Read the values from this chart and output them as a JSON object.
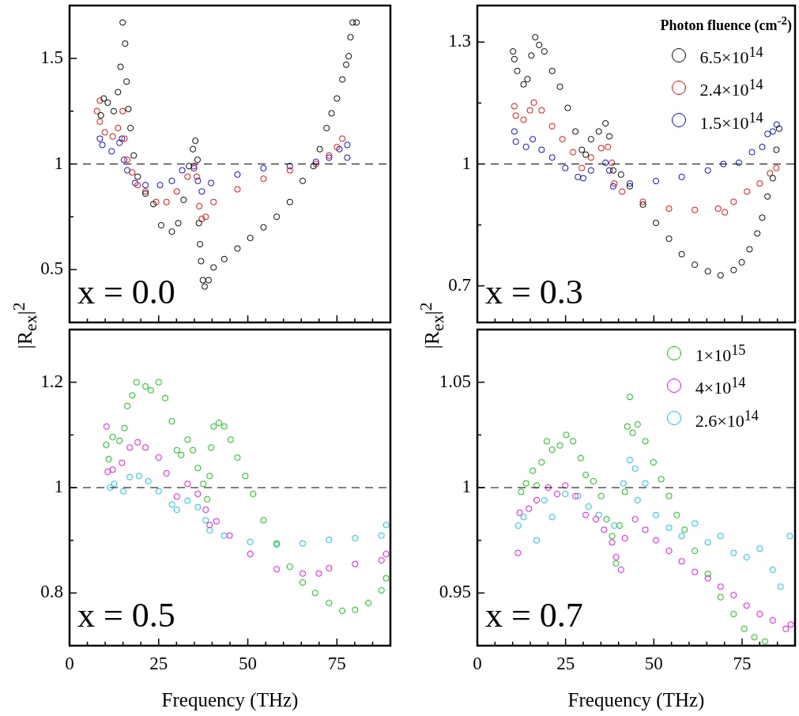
{
  "chart_data": [
    {
      "type": "scatter",
      "ylabel": "|R$_{ex}$|$^{2}$",
      "marker": "circle",
      "legend": false,
      "tick_labels": "y",
      "annotations": [
        "x = 0.0"
      ],
      "xlim": [
        0,
        90
      ],
      "xticks": [
        0,
        {
          "value": 5,
          "label": null
        },
        {
          "value": 10,
          "label": null
        },
        {
          "value": 15,
          "label": null
        },
        {
          "value": 20,
          "label": null
        },
        25,
        {
          "value": 30,
          "label": null
        },
        {
          "value": 35,
          "label": null
        },
        {
          "value": 40,
          "label": null
        },
        {
          "value": 45,
          "label": null
        },
        50,
        {
          "value": 55,
          "label": null
        },
        {
          "value": 60,
          "label": null
        },
        {
          "value": 65,
          "label": null
        },
        {
          "value": 70,
          "label": null
        },
        75,
        {
          "value": 80,
          "label": null
        },
        {
          "value": 85,
          "label": null
        },
        {
          "value": 90,
          "label": null
        }
      ],
      "ylim": [
        0.25,
        1.75
      ],
      "yticks": [
        0.5,
        {
          "value": 0.75,
          "label": null
        },
        1,
        {
          "value": 1.25,
          "label": null
        },
        1.5
      ],
      "ref_lines": [
        {
          "axis": "y",
          "value": 1,
          "line_style": "dashed",
          "color": "#000000"
        }
      ],
      "series": [
        {
          "color": "#000000",
          "x": [
            8.8,
            9.6,
            10.7,
            12.4,
            13.6,
            14.3,
            14.9,
            15.6,
            16.0,
            16.5,
            17.1,
            18.0,
            19.1,
            21.3,
            23.5,
            25.7,
            28.7,
            30.5,
            32.0,
            33.5,
            34.6,
            35.3,
            35.9,
            36.3,
            36.6,
            36.9,
            37.4,
            37.9,
            39.0,
            40.4,
            43.4,
            47.1,
            50.7,
            54.4,
            58.1,
            61.8,
            65.4,
            68.4,
            70.2,
            72.1,
            73.5,
            75.0,
            76.5,
            77.6,
            78.3,
            78.8,
            79.4,
            80.5
          ],
          "values": [
            1.23,
            1.31,
            1.29,
            1.25,
            1.34,
            1.46,
            1.67,
            1.57,
            1.39,
            1.26,
            1.17,
            1.04,
            0.94,
            0.86,
            0.81,
            0.71,
            0.68,
            0.72,
            0.83,
            0.99,
            1.07,
            1.11,
            1.02,
            0.72,
            0.62,
            0.54,
            0.45,
            0.42,
            0.45,
            0.51,
            0.55,
            0.6,
            0.65,
            0.7,
            0.75,
            0.82,
            0.92,
            0.99,
            1.07,
            1.17,
            1.24,
            1.31,
            1.4,
            1.47,
            1.51,
            1.6,
            1.67,
            1.67
          ]
        },
        {
          "color": "#ff0000",
          "x": [
            7.7,
            8.5,
            8.5,
            9.9,
            12.1,
            13.6,
            14.9,
            15.4,
            16.2,
            17.6,
            19.1,
            21.3,
            24.3,
            27.2,
            30.1,
            33.1,
            34.9,
            35.7,
            36.4,
            37.1,
            38.2,
            40.4,
            47.1,
            54.4,
            61.8,
            69.1,
            72.8,
            75.0,
            76.5
          ],
          "values": [
            1.25,
            1.3,
            1.2,
            1.15,
            1.13,
            1.17,
            1.25,
            1.12,
            1.02,
            0.96,
            0.9,
            0.87,
            0.82,
            0.82,
            0.87,
            0.94,
            0.99,
            0.94,
            0.8,
            0.74,
            0.75,
            0.82,
            0.88,
            0.93,
            0.97,
            1.0,
            1.04,
            1.08,
            1.12
          ]
        },
        {
          "color": "#0000ff",
          "x": [
            8.5,
            9.2,
            11.8,
            14.0,
            14.7,
            15.3,
            16.2,
            18.4,
            21.3,
            25.4,
            28.7,
            31.6,
            34.9,
            36.0,
            37.1,
            39.7,
            47.1,
            54.4,
            61.8,
            69.1,
            72.8,
            75.7,
            77.9,
            77.9
          ],
          "values": [
            1.12,
            1.09,
            1.06,
            1.1,
            1.12,
            1.02,
            0.97,
            0.91,
            0.9,
            0.9,
            0.92,
            0.97,
            0.98,
            0.92,
            0.87,
            0.91,
            0.95,
            0.98,
            0.99,
            1.01,
            1.03,
            1.07,
            1.09,
            1.03
          ]
        }
      ]
    },
    {
      "type": "scatter",
      "ylabel": "|R$_{ex}$|$^{2}$",
      "marker": "circle",
      "legend": "top right",
      "legend_title": "Photon fluence (cm$^{-2}$)",
      "tick_labels": "y",
      "annotations": [
        "x = 0.3"
      ],
      "xlim": [
        0,
        90
      ],
      "xticks": [
        0,
        {
          "value": 5,
          "label": null
        },
        {
          "value": 10,
          "label": null
        },
        {
          "value": 15,
          "label": null
        },
        {
          "value": 20,
          "label": null
        },
        25,
        {
          "value": 30,
          "label": null
        },
        {
          "value": 35,
          "label": null
        },
        {
          "value": 40,
          "label": null
        },
        {
          "value": 45,
          "label": null
        },
        50,
        {
          "value": 55,
          "label": null
        },
        {
          "value": 60,
          "label": null
        },
        {
          "value": 65,
          "label": null
        },
        {
          "value": 70,
          "label": null
        },
        75,
        {
          "value": 80,
          "label": null
        },
        {
          "value": 85,
          "label": null
        },
        {
          "value": 90,
          "label": null
        }
      ],
      "ylim": [
        0.61,
        1.39
      ],
      "yticks": [
        0.7,
        {
          "value": 0.85,
          "label": null
        },
        1,
        {
          "value": 1.15,
          "label": null
        },
        1.3
      ],
      "ref_lines": [
        {
          "axis": "y",
          "value": 1,
          "line_style": "dashed",
          "color": "#000000"
        }
      ],
      "series": [
        {
          "name": "6.5×10$^{14}$",
          "color": "#000000",
          "x": [
            10.1,
            10.5,
            11.3,
            13.1,
            14.2,
            15.3,
            16.4,
            17.5,
            19.0,
            21.2,
            23.4,
            25.6,
            27.8,
            29.6,
            30.7,
            32.2,
            34.4,
            36.3,
            37.4,
            38.5,
            40.7,
            43.2,
            46.9,
            50.6,
            54.3,
            57.9,
            61.6,
            65.3,
            68.9,
            72.6,
            74.9,
            77.1,
            79.3,
            80.7,
            82.2,
            83.7,
            84.7,
            85.5
          ],
          "values": [
            1.277,
            1.258,
            1.229,
            1.196,
            1.209,
            1.267,
            1.312,
            1.293,
            1.277,
            1.229,
            1.19,
            1.138,
            1.08,
            1.035,
            1.023,
            1.061,
            1.08,
            1.1,
            1.068,
            0.984,
            0.974,
            0.945,
            0.9,
            0.855,
            0.816,
            0.778,
            0.752,
            0.736,
            0.726,
            0.739,
            0.758,
            0.79,
            0.829,
            0.868,
            0.92,
            0.965,
            1.035,
            1.087
          ]
        },
        {
          "name": "2.4×10$^{14}$",
          "color": "#ff0000",
          "x": [
            10.5,
            10.9,
            13.1,
            14.9,
            16.0,
            18.2,
            21.2,
            24.1,
            27.1,
            29.6,
            32.2,
            35.1,
            37.0,
            38.1,
            38.8,
            41.0,
            46.9,
            54.3,
            61.6,
            68.2,
            70.1,
            72.6,
            76.4,
            80.0,
            82.9,
            84.7
          ],
          "values": [
            1.142,
            1.119,
            1.109,
            1.132,
            1.151,
            1.132,
            1.093,
            1.061,
            1.029,
            0.99,
            1.016,
            1.039,
            1.042,
            1.003,
            0.952,
            0.932,
            0.907,
            0.89,
            0.887,
            0.89,
            0.881,
            0.907,
            0.932,
            0.952,
            0.977,
            0.99
          ]
        },
        {
          "name": "1.5×10$^{14}$",
          "color": "#0000ff",
          "x": [
            10.5,
            10.9,
            13.8,
            15.7,
            18.2,
            21.2,
            24.9,
            28.5,
            30.0,
            32.2,
            36.3,
            37.4,
            38.5,
            43.2,
            50.6,
            57.9,
            65.3,
            69.7,
            74.1,
            77.8,
            80.7,
            82.2,
            83.7,
            84.8
          ],
          "values": [
            1.08,
            1.055,
            1.042,
            1.061,
            1.035,
            1.016,
            0.99,
            0.968,
            0.965,
            0.984,
            1.003,
            0.984,
            0.945,
            0.952,
            0.958,
            0.968,
            0.984,
            1.0,
            1.003,
            1.029,
            1.042,
            1.074,
            1.08,
            1.097
          ]
        }
      ]
    },
    {
      "type": "scatter",
      "xlabel": "Frequency (THz)",
      "marker": "circle",
      "legend": false,
      "annotations": [
        "x = 0.5"
      ],
      "xlim": [
        0,
        90
      ],
      "xticks": [
        0,
        {
          "value": 5,
          "label": null
        },
        {
          "value": 10,
          "label": null
        },
        {
          "value": 15,
          "label": null
        },
        {
          "value": 20,
          "label": null
        },
        25,
        {
          "value": 30,
          "label": null
        },
        {
          "value": 35,
          "label": null
        },
        {
          "value": 40,
          "label": null
        },
        {
          "value": 45,
          "label": null
        },
        50,
        {
          "value": 55,
          "label": null
        },
        {
          "value": 60,
          "label": null
        },
        {
          "value": 65,
          "label": null
        },
        {
          "value": 70,
          "label": null
        },
        75,
        {
          "value": 80,
          "label": null
        },
        {
          "value": 85,
          "label": null
        },
        {
          "value": 90,
          "label": null
        }
      ],
      "ylim": [
        0.7,
        1.3
      ],
      "yticks": [
        0.8,
        {
          "value": 0.9,
          "label": null
        },
        1,
        {
          "value": 1.1,
          "label": null
        },
        1.2
      ],
      "ref_lines": [
        {
          "axis": "y",
          "value": 1,
          "line_style": "dashed",
          "color": "#000000"
        }
      ],
      "series": [
        {
          "color": "#00cc00",
          "x": [
            10.3,
            11.0,
            12.1,
            14.0,
            15.4,
            16.2,
            17.6,
            18.8,
            21.3,
            22.8,
            25.0,
            26.8,
            28.7,
            30.1,
            31.3,
            33.1,
            34.6,
            36.0,
            37.5,
            38.6,
            39.3,
            39.7,
            40.4,
            41.9,
            43.4,
            45.2,
            47.1,
            49.3,
            51.5,
            54.4,
            58.1,
            61.8,
            65.4,
            68.9,
            72.8,
            76.5,
            80.1,
            83.8,
            87.5,
            88.8
          ],
          "values": [
            1.081,
            1.054,
            1.096,
            1.089,
            1.113,
            1.155,
            1.175,
            1.2,
            1.192,
            1.185,
            1.2,
            1.17,
            1.126,
            1.071,
            1.062,
            1.091,
            1.071,
            1.037,
            1.007,
            0.978,
            1.022,
            1.076,
            1.116,
            1.123,
            1.116,
            1.091,
            1.057,
            1.022,
            0.988,
            0.938,
            0.894,
            0.85,
            0.82,
            0.8,
            0.781,
            0.766,
            0.768,
            0.781,
            0.805,
            0.828
          ]
        },
        {
          "color": "#ff00ff",
          "x": [
            10.4,
            10.7,
            12.1,
            14.7,
            16.9,
            19.1,
            21.3,
            25.0,
            27.2,
            30.1,
            33.1,
            36.0,
            38.2,
            39.3,
            41.2,
            44.9,
            50.7,
            58.1,
            65.4,
            69.9,
            72.8,
            80.1,
            87.5,
            88.8
          ],
          "values": [
            1.116,
            1.03,
            1.034,
            1.047,
            1.076,
            1.086,
            1.076,
            1.057,
            1.027,
            0.983,
            1.007,
            0.988,
            0.958,
            0.929,
            0.936,
            0.909,
            0.874,
            0.845,
            0.837,
            0.837,
            0.847,
            0.855,
            0.862,
            0.874
          ]
        },
        {
          "color": "#00ccf0",
          "x": [
            11.4,
            12.5,
            15.1,
            16.9,
            19.5,
            22.1,
            25.0,
            28.7,
            30.1,
            33.1,
            36.0,
            38.2,
            39.3,
            43.4,
            50.7,
            58.1,
            65.4,
            72.8,
            80.1,
            87.5,
            88.8
          ],
          "values": [
            1.0,
            1.007,
            0.993,
            1.02,
            1.022,
            1.012,
            0.993,
            0.968,
            0.958,
            0.975,
            0.963,
            0.938,
            0.919,
            0.909,
            0.897,
            0.892,
            0.894,
            0.901,
            0.904,
            0.909,
            0.929
          ]
        }
      ]
    },
    {
      "type": "scatter",
      "xlabel": "Frequency (THz)",
      "marker": "circle",
      "legend": "top right",
      "annotations": [
        "x = 0.7"
      ],
      "xlim": [
        0,
        90
      ],
      "xticks": [
        0,
        {
          "value": 5,
          "label": null
        },
        {
          "value": 10,
          "label": null
        },
        {
          "value": 15,
          "label": null
        },
        {
          "value": 20,
          "label": null
        },
        25,
        {
          "value": 30,
          "label": null
        },
        {
          "value": 35,
          "label": null
        },
        {
          "value": 40,
          "label": null
        },
        {
          "value": 45,
          "label": null
        },
        50,
        {
          "value": 55,
          "label": null
        },
        {
          "value": 60,
          "label": null
        },
        {
          "value": 65,
          "label": null
        },
        {
          "value": 70,
          "label": null
        },
        75,
        {
          "value": 80,
          "label": null
        },
        {
          "value": 85,
          "label": null
        },
        {
          "value": 90,
          "label": null
        }
      ],
      "ylim": [
        0.925,
        1.075
      ],
      "yticks": [
        0.95,
        {
          "value": 0.975,
          "label": null
        },
        1,
        {
          "value": 1.025,
          "label": null
        },
        1.05
      ],
      "ref_lines": [
        {
          "axis": "y",
          "value": 1,
          "line_style": "dashed",
          "color": "#000000"
        }
      ],
      "series": [
        {
          "name": "1×10$^{15}$",
          "color": "#00cc00",
          "x": [
            12.4,
            13.8,
            15.7,
            16.8,
            18.2,
            19.7,
            21.2,
            23.4,
            25.2,
            27.1,
            29.3,
            30.7,
            32.9,
            35.1,
            36.6,
            38.2,
            39.3,
            40.3,
            41.8,
            42.5,
            43.2,
            44.0,
            45.4,
            47.6,
            49.9,
            52.1,
            54.3,
            56.5,
            58.7,
            61.6,
            65.3,
            68.9,
            72.6,
            75.6,
            78.5,
            81.5
          ],
          "values": [
            0.998,
            1.002,
            1.008,
            1.001,
            1.012,
            1.022,
            1.018,
            1.02,
            1.025,
            1.022,
            1.014,
            1.006,
            1.003,
            0.996,
            0.985,
            0.977,
            0.964,
            0.982,
            0.998,
            1.029,
            1.043,
            1.026,
            1.03,
            1.022,
            1.012,
            1.004,
            0.996,
            0.987,
            0.98,
            0.97,
            0.959,
            0.948,
            0.94,
            0.933,
            0.929,
            0.927
          ]
        },
        {
          "name": "4×10$^{14}$",
          "color": "#ff00ff",
          "x": [
            11.5,
            12.0,
            14.6,
            16.8,
            20.1,
            22.6,
            24.9,
            27.8,
            30.7,
            33.6,
            35.9,
            38.2,
            39.3,
            40.7,
            41.8,
            44.7,
            47.6,
            50.6,
            54.3,
            57.9,
            61.6,
            65.3,
            68.9,
            72.6,
            76.3,
            80.0,
            83.7,
            87.4,
            88.8
          ],
          "values": [
            0.969,
            0.988,
            0.99,
            0.994,
            1.0,
            0.997,
            1.001,
            0.996,
            0.987,
            0.985,
            0.98,
            0.974,
            0.967,
            0.961,
            0.976,
            0.985,
            0.98,
            0.975,
            0.97,
            0.965,
            0.96,
            0.957,
            0.953,
            0.949,
            0.944,
            0.94,
            0.937,
            0.933,
            0.935
          ]
        },
        {
          "name": "2.6×10$^{14}$",
          "color": "#00ccf0",
          "x": [
            11.6,
            13.1,
            16.8,
            19.0,
            21.2,
            24.9,
            28.5,
            31.5,
            34.4,
            38.8,
            41.4,
            43.2,
            44.7,
            45.4,
            47.6,
            50.6,
            54.3,
            57.9,
            61.6,
            65.3,
            68.9,
            72.6,
            76.3,
            80.0,
            83.7,
            85.9,
            88.5
          ],
          "values": [
            0.982,
            0.986,
            0.975,
            0.994,
            0.986,
            0.997,
            0.996,
            0.991,
            0.987,
            0.982,
            1.002,
            1.013,
            1.009,
            0.994,
            1.002,
            0.987,
            0.981,
            0.977,
            0.983,
            0.974,
            0.977,
            0.969,
            0.967,
            0.971,
            0.961,
            0.953,
            0.977
          ]
        }
      ]
    }
  ]
}
